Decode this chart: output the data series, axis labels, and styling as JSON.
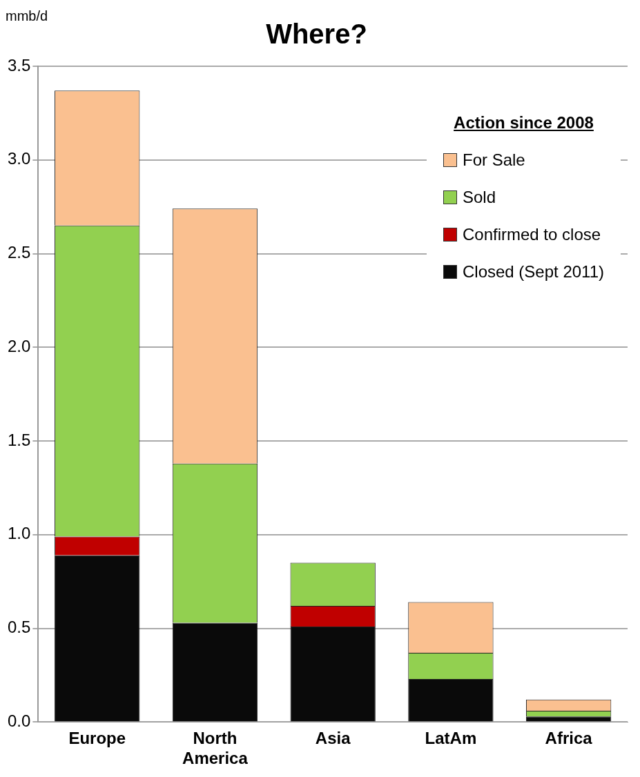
{
  "chart_data": {
    "type": "bar",
    "title": "Where?",
    "ylabel": "mmb/d",
    "legend_title": "Action since 2008",
    "categories": [
      "Europe",
      "North America",
      "Asia",
      "LatAm",
      "Africa"
    ],
    "stacked": true,
    "series": [
      {
        "name": "Closed (Sept 2011)",
        "color": "#0a0a0a",
        "values": [
          0.89,
          0.53,
          0.51,
          0.23,
          0.03
        ]
      },
      {
        "name": "Confirmed to close",
        "color": "#c00000",
        "values": [
          0.1,
          0,
          0.11,
          0,
          0
        ]
      },
      {
        "name": "Sold",
        "color": "#92d050",
        "values": [
          1.66,
          0.85,
          0.23,
          0.14,
          0.03
        ]
      },
      {
        "name": "For Sale",
        "color": "#fac090",
        "values": [
          0.72,
          1.36,
          0,
          0.27,
          0.06
        ]
      }
    ],
    "ylim": [
      0,
      3.5
    ],
    "yticks": [
      {
        "value": 0,
        "label": "0.0"
      },
      {
        "value": 0.5,
        "label": "0.5"
      },
      {
        "value": 1,
        "label": "1.0"
      },
      {
        "value": 1.5,
        "label": "1.5"
      },
      {
        "value": 2,
        "label": "2.0"
      },
      {
        "value": 2.5,
        "label": "2.5"
      },
      {
        "value": 3,
        "label": "3.0"
      },
      {
        "value": 3.5,
        "label": "3.5"
      }
    ],
    "grid": "y",
    "legend": "top right"
  }
}
